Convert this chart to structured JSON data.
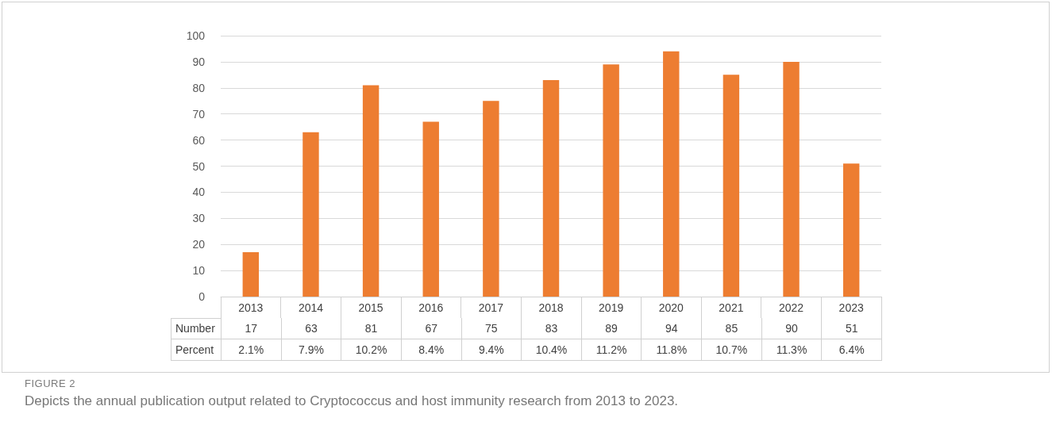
{
  "chart_data": {
    "type": "bar",
    "title": "FIGURE 2",
    "subtitle": "Depicts the annual publication output related to Cryptococcus and host immunity research from 2013 to 2023.",
    "categories": [
      "2013",
      "2014",
      "2015",
      "2016",
      "2017",
      "2018",
      "2019",
      "2020",
      "2021",
      "2022",
      "2023"
    ],
    "series": [
      {
        "name": "Number",
        "color": "#ed7d31",
        "values": [
          17,
          63,
          81,
          67,
          75,
          83,
          89,
          94,
          85,
          90,
          51
        ]
      }
    ],
    "data_labels": true,
    "annotations": [
      "Percent",
      "2.1%",
      "7.9%",
      "10.2%",
      "8.4%",
      "9.4%",
      "10.4%",
      "11.2%",
      "11.8%",
      "10.7%",
      "11.3%",
      "6.4%"
    ],
    "ylim": [
      0,
      100
    ],
    "yticks": [
      0,
      10,
      20,
      30,
      40,
      50,
      60,
      70,
      80,
      90,
      100
    ],
    "grid": "y",
    "legend": false
  }
}
